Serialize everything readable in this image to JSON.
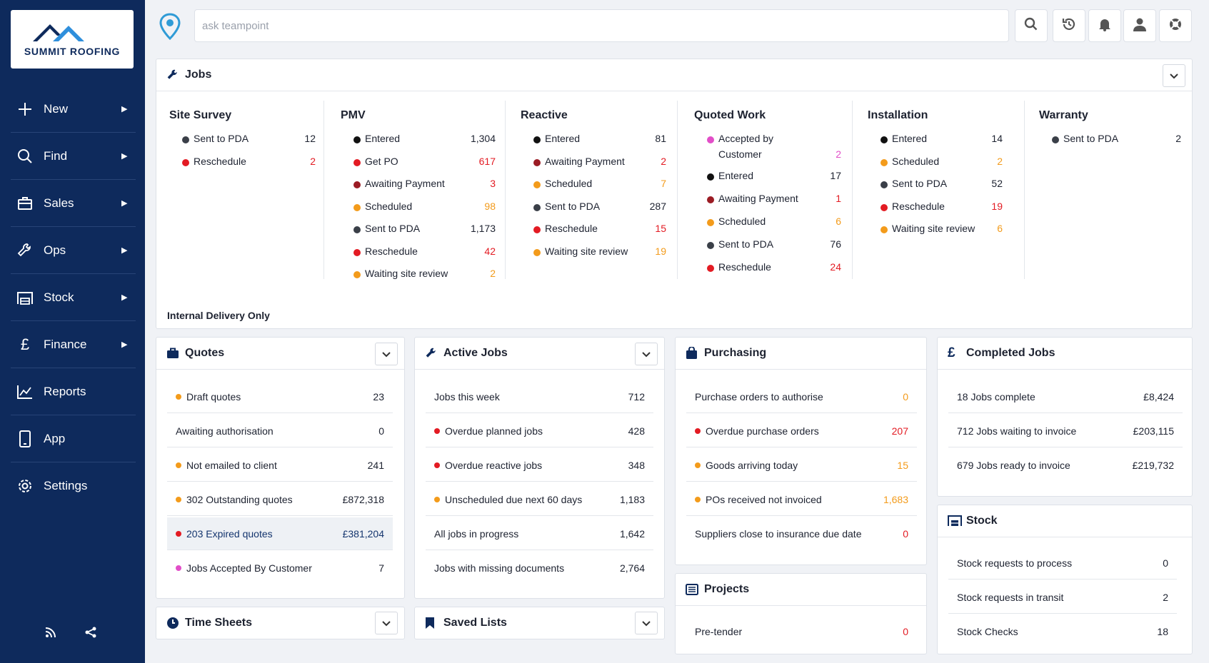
{
  "brand": {
    "name": "SUMMIT ROOFING"
  },
  "sidebar": {
    "items": [
      {
        "label": "New",
        "icon": "plus-icon"
      },
      {
        "label": "Find",
        "icon": "search-icon"
      },
      {
        "label": "Sales",
        "icon": "briefcase-icon"
      },
      {
        "label": "Ops",
        "icon": "wrench-icon"
      },
      {
        "label": "Stock",
        "icon": "warehouse-icon"
      },
      {
        "label": "Finance",
        "icon": "pound-icon"
      },
      {
        "label": "Reports",
        "icon": "chart-icon"
      },
      {
        "label": "App",
        "icon": "phone-icon"
      },
      {
        "label": "Settings",
        "icon": "gear-icon"
      }
    ]
  },
  "search": {
    "placeholder": "ask teampoint"
  },
  "colors": {
    "sidebar": "#0e2a5c",
    "red": "#e31b23",
    "orange": "#f39b1b",
    "pink": "#e24ec8",
    "dark": "#3a3f48",
    "maroon": "#9b1c24",
    "black": "#111111"
  },
  "jobs": {
    "title": "Jobs",
    "footer": "Internal Delivery Only",
    "columns": [
      {
        "title": "Site Survey",
        "rows": [
          {
            "label": "Sent to PDA",
            "value": "12",
            "dot": "dark",
            "color": "dark"
          },
          {
            "label": "Reschedule",
            "value": "2",
            "dot": "red",
            "color": "red"
          }
        ]
      },
      {
        "title": "PMV",
        "rows": [
          {
            "label": "Entered",
            "value": "1,304",
            "dot": "black",
            "color": "dark"
          },
          {
            "label": "Get PO",
            "value": "617",
            "dot": "red",
            "color": "red"
          },
          {
            "label": "Awaiting Payment",
            "value": "3",
            "dot": "maroon",
            "color": "red"
          },
          {
            "label": "Scheduled",
            "value": "98",
            "dot": "orange",
            "color": "orange"
          },
          {
            "label": "Sent to PDA",
            "value": "1,173",
            "dot": "dark",
            "color": "dark"
          },
          {
            "label": "Reschedule",
            "value": "42",
            "dot": "red",
            "color": "red"
          },
          {
            "label": "Waiting site review",
            "value": "2",
            "dot": "orange",
            "color": "orange"
          }
        ]
      },
      {
        "title": "Reactive",
        "rows": [
          {
            "label": "Entered",
            "value": "81",
            "dot": "black",
            "color": "dark"
          },
          {
            "label": "Awaiting Payment",
            "value": "2",
            "dot": "maroon",
            "color": "red"
          },
          {
            "label": "Scheduled",
            "value": "7",
            "dot": "orange",
            "color": "orange"
          },
          {
            "label": "Sent to PDA",
            "value": "287",
            "dot": "dark",
            "color": "dark"
          },
          {
            "label": "Reschedule",
            "value": "15",
            "dot": "red",
            "color": "red"
          },
          {
            "label": "Waiting site review",
            "value": "19",
            "dot": "orange",
            "color": "orange"
          }
        ]
      },
      {
        "title": "Quoted Work",
        "rows": [
          {
            "label": "Accepted by Customer",
            "value": "2",
            "dot": "pink",
            "color": "pink"
          },
          {
            "label": "Entered",
            "value": "17",
            "dot": "black",
            "color": "dark"
          },
          {
            "label": "Awaiting Payment",
            "value": "1",
            "dot": "maroon",
            "color": "red"
          },
          {
            "label": "Scheduled",
            "value": "6",
            "dot": "orange",
            "color": "orange"
          },
          {
            "label": "Sent to PDA",
            "value": "76",
            "dot": "dark",
            "color": "dark"
          },
          {
            "label": "Reschedule",
            "value": "24",
            "dot": "red",
            "color": "red"
          }
        ]
      },
      {
        "title": "Installation",
        "rows": [
          {
            "label": "Entered",
            "value": "14",
            "dot": "black",
            "color": "dark"
          },
          {
            "label": "Scheduled",
            "value": "2",
            "dot": "orange",
            "color": "orange"
          },
          {
            "label": "Sent to PDA",
            "value": "52",
            "dot": "dark",
            "color": "dark"
          },
          {
            "label": "Reschedule",
            "value": "19",
            "dot": "red",
            "color": "red"
          },
          {
            "label": "Waiting site review",
            "value": "6",
            "dot": "orange",
            "color": "orange"
          }
        ]
      },
      {
        "title": "Warranty",
        "rows": [
          {
            "label": "Sent to PDA",
            "value": "2",
            "dot": "dark",
            "color": "dark"
          }
        ]
      }
    ]
  },
  "quotes": {
    "title": "Quotes",
    "rows": [
      {
        "label": "Draft quotes",
        "value": "23",
        "dot": "orange",
        "color": "dark"
      },
      {
        "label": "Awaiting authorisation",
        "value": "0",
        "dot": "",
        "color": "dark"
      },
      {
        "label": "Not emailed to client",
        "value": "241",
        "dot": "orange",
        "color": "dark"
      },
      {
        "label": "302 Outstanding quotes",
        "value": "£872,318",
        "dot": "orange",
        "color": "dark"
      },
      {
        "label": "203 Expired quotes",
        "value": "£381,204",
        "dot": "red",
        "color": "dark",
        "highlight": true
      },
      {
        "label": "Jobs Accepted By Customer",
        "value": "7",
        "dot": "pink",
        "color": "dark"
      }
    ]
  },
  "active_jobs": {
    "title": "Active Jobs",
    "rows": [
      {
        "label": "Jobs this week",
        "value": "712",
        "dot": "",
        "color": "dark"
      },
      {
        "label": "Overdue planned jobs",
        "value": "428",
        "dot": "red",
        "color": "dark"
      },
      {
        "label": "Overdue reactive jobs",
        "value": "348",
        "dot": "red",
        "color": "dark"
      },
      {
        "label": "Unscheduled due next 60 days",
        "value": "1,183",
        "dot": "orange",
        "color": "dark"
      },
      {
        "label": "All jobs in progress",
        "value": "1,642",
        "dot": "",
        "color": "dark"
      },
      {
        "label": "Jobs with missing documents",
        "value": "2,764",
        "dot": "",
        "color": "dark"
      }
    ]
  },
  "purchasing": {
    "title": "Purchasing",
    "rows": [
      {
        "label": "Purchase orders to authorise",
        "value": "0",
        "dot": "",
        "color": "orange"
      },
      {
        "label": "Overdue purchase orders",
        "value": "207",
        "dot": "red",
        "color": "red"
      },
      {
        "label": "Goods arriving today",
        "value": "15",
        "dot": "orange",
        "color": "orange"
      },
      {
        "label": "POs received not invoiced",
        "value": "1,683",
        "dot": "orange",
        "color": "orange"
      },
      {
        "label": "Suppliers close to insurance due date",
        "value": "0",
        "dot": "",
        "color": "red"
      }
    ]
  },
  "completed_jobs": {
    "title": "Completed Jobs",
    "rows": [
      {
        "label": "18 Jobs complete",
        "value": "£8,424",
        "dot": "",
        "color": "dark"
      },
      {
        "label": "712 Jobs waiting to invoice",
        "value": "£203,115",
        "dot": "",
        "color": "dark"
      },
      {
        "label": "679 Jobs ready to invoice",
        "value": "£219,732",
        "dot": "",
        "color": "dark"
      }
    ]
  },
  "stock": {
    "title": "Stock",
    "rows": [
      {
        "label": "Stock requests to process",
        "value": "0",
        "dot": "",
        "color": "dark"
      },
      {
        "label": "Stock requests in transit",
        "value": "2",
        "dot": "",
        "color": "dark"
      },
      {
        "label": "Stock Checks",
        "value": "18",
        "dot": "",
        "color": "dark"
      }
    ]
  },
  "projects": {
    "title": "Projects",
    "rows": [
      {
        "label": "Pre-tender",
        "value": "0",
        "dot": "",
        "color": "red"
      }
    ]
  },
  "time_sheets": {
    "title": "Time Sheets"
  },
  "saved_lists": {
    "title": "Saved Lists"
  }
}
